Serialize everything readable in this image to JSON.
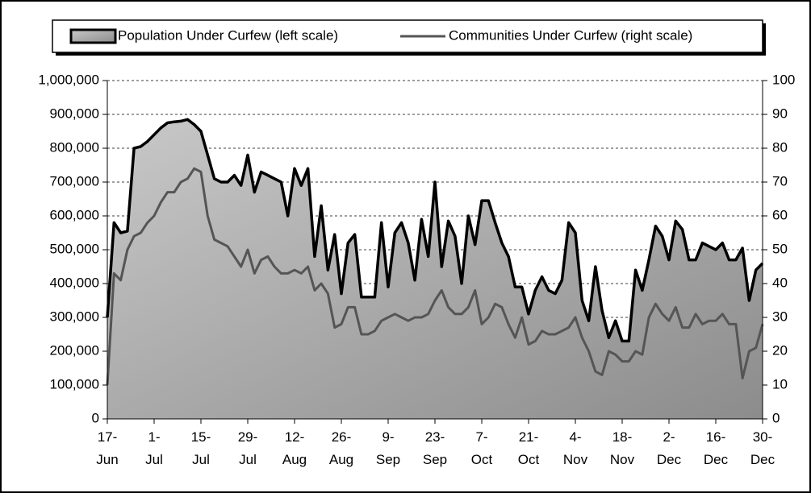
{
  "chart_data": {
    "type": "area",
    "categories": [
      "17- Jun",
      null,
      null,
      null,
      null,
      null,
      null,
      "1- Jul",
      null,
      null,
      null,
      null,
      null,
      null,
      "15- Jul",
      null,
      null,
      null,
      null,
      null,
      null,
      "29- Jul",
      null,
      null,
      null,
      null,
      null,
      null,
      "12- Aug",
      null,
      null,
      null,
      null,
      null,
      null,
      "26- Aug",
      null,
      null,
      null,
      null,
      null,
      null,
      "9- Sep",
      null,
      null,
      null,
      null,
      null,
      null,
      "23- Sep",
      null,
      null,
      null,
      null,
      null,
      null,
      "7- Oct",
      null,
      null,
      null,
      null,
      null,
      null,
      "21- Oct",
      null,
      null,
      null,
      null,
      null,
      null,
      "4- Nov",
      null,
      null,
      null,
      null,
      null,
      null,
      "18- Nov",
      null,
      null,
      null,
      null,
      null,
      null,
      "2- Dec",
      null,
      null,
      null,
      null,
      null,
      null,
      "16- Dec",
      null,
      null,
      null,
      null,
      null,
      null,
      "30- Dec"
    ],
    "series": [
      {
        "name": "Population Under Curfew  (left scale)",
        "type": "area",
        "color": "#a8a8a8",
        "line_color": "#000000",
        "values": [
          300000,
          580000,
          550000,
          555000,
          800000,
          805000,
          820000,
          840000,
          860000,
          875000,
          878000,
          880000,
          885000,
          870000,
          850000,
          780000,
          710000,
          700000,
          700000,
          720000,
          690000,
          780000,
          670000,
          730000,
          720000,
          710000,
          700000,
          600000,
          740000,
          690000,
          740000,
          480000,
          630000,
          440000,
          545000,
          370000,
          520000,
          545000,
          360000,
          360000,
          360000,
          580000,
          390000,
          550000,
          580000,
          520000,
          410000,
          590000,
          480000,
          700000,
          450000,
          585000,
          540000,
          400000,
          600000,
          515000,
          645000,
          645000,
          580000,
          520000,
          480000,
          390000,
          390000,
          310000,
          380000,
          420000,
          380000,
          370000,
          410000,
          580000,
          550000,
          350000,
          290000,
          450000,
          320000,
          240000,
          290000,
          230000,
          230000,
          440000,
          380000,
          470000,
          570000,
          540000,
          470000,
          585000,
          560000,
          470000,
          470000,
          520000,
          510000,
          500000,
          520000,
          470000,
          470000,
          505000,
          350000,
          440000,
          460000
        ]
      },
      {
        "name": "Communities Under Curfew  (right scale)",
        "type": "line",
        "axis": "y2",
        "color": "#555555",
        "values": [
          10,
          43,
          41,
          50,
          54,
          55,
          58,
          60,
          64,
          67,
          67,
          70,
          71,
          74,
          73,
          60,
          53,
          52,
          51,
          48,
          45,
          50,
          43,
          47,
          48,
          45,
          43,
          43,
          44,
          43,
          45,
          38,
          40,
          37,
          27,
          28,
          33,
          33,
          25,
          25,
          26,
          29,
          30,
          31,
          30,
          29,
          30,
          30,
          31,
          35,
          38,
          33,
          31,
          31,
          33,
          38,
          28,
          30,
          34,
          33,
          28,
          24,
          30,
          22,
          23,
          26,
          25,
          25,
          26,
          27,
          30,
          24,
          20,
          14,
          13,
          20,
          19,
          17,
          17,
          20,
          19,
          30,
          34,
          31,
          29,
          33,
          27,
          27,
          31,
          28,
          29,
          29,
          31,
          28,
          28,
          12,
          20,
          21,
          28
        ]
      }
    ],
    "ylim": [
      0,
      1000000
    ],
    "yticks": [
      0,
      {
        "value": 100000,
        "label": "100,000"
      },
      {
        "value": 200000,
        "label": "200,000"
      },
      {
        "value": 300000,
        "label": "300,000"
      },
      {
        "value": 400000,
        "label": "400,000"
      },
      {
        "value": 500000,
        "label": "500,000"
      },
      {
        "value": 600000,
        "label": "600,000"
      },
      {
        "value": 700000,
        "label": "700,000"
      },
      {
        "value": 800000,
        "label": "800,000"
      },
      {
        "value": 900000,
        "label": "900,000"
      },
      {
        "value": 1000000,
        "label": "1,000,000"
      }
    ],
    "y2lim": [
      0,
      100
    ],
    "y2ticks": [
      0,
      10,
      20,
      30,
      40,
      50,
      60,
      70,
      80,
      90,
      100
    ],
    "grid": true,
    "legend": "top"
  }
}
